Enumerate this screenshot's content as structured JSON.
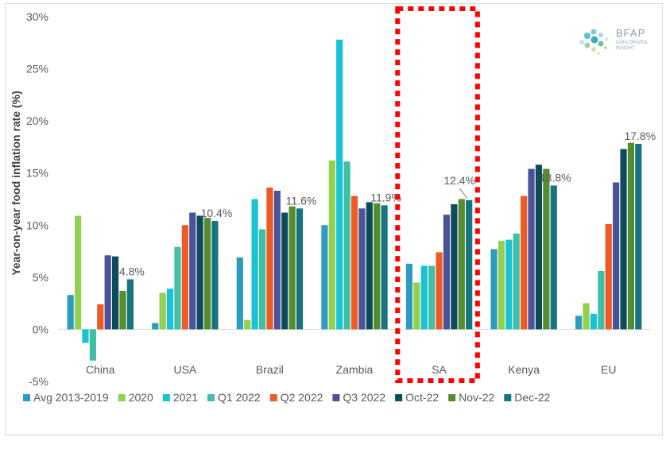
{
  "logo": {
    "brand": "BFAP",
    "tagline": "DATA DRIVEN INSIGHT"
  },
  "chart_data": {
    "type": "bar",
    "ylabel": "Year-on-year food inflation rate (%)",
    "ylim": [
      -5,
      30
    ],
    "yticks": [
      "-5%",
      "0%",
      "5%",
      "10%",
      "15%",
      "20%",
      "25%",
      "30%"
    ],
    "categories": [
      "China",
      "USA",
      "Brazil",
      "Zambia",
      "SA",
      "Kenya",
      "EU"
    ],
    "series": [
      {
        "name": "Avg 2013-2019",
        "color": "#2e9bc0",
        "values": [
          3.3,
          0.6,
          6.9,
          10.0,
          6.3,
          7.7,
          1.3
        ]
      },
      {
        "name": "2020",
        "color": "#92d050",
        "values": [
          10.9,
          3.5,
          0.9,
          16.2,
          4.5,
          8.5,
          2.5
        ]
      },
      {
        "name": "2021",
        "color": "#19c3d3",
        "values": [
          -1.3,
          3.9,
          12.5,
          27.8,
          6.1,
          8.6,
          1.5
        ]
      },
      {
        "name": "Q1 2022",
        "color": "#3fbfa5",
        "values": [
          -3.0,
          7.9,
          9.6,
          16.1,
          6.1,
          9.2,
          5.6
        ]
      },
      {
        "name": "Q2 2022",
        "color": "#ee5a24",
        "values": [
          2.4,
          10.0,
          13.6,
          12.8,
          7.4,
          12.8,
          10.1
        ]
      },
      {
        "name": "Q3 2022",
        "color": "#4a5397",
        "values": [
          7.1,
          11.2,
          13.3,
          11.6,
          11.0,
          15.4,
          14.1
        ]
      },
      {
        "name": "Oct-22",
        "color": "#0e4c5d",
        "values": [
          7.0,
          10.9,
          11.2,
          12.2,
          12.0,
          15.8,
          17.3
        ]
      },
      {
        "name": "Nov-22",
        "color": "#548c2f",
        "values": [
          3.7,
          10.7,
          11.8,
          12.1,
          12.5,
          15.4,
          17.9
        ]
      },
      {
        "name": "Dec-22",
        "color": "#17757f",
        "values": [
          4.8,
          10.4,
          11.6,
          11.9,
          12.4,
          13.8,
          17.8
        ]
      }
    ],
    "data_labels": [
      {
        "category": "China",
        "series": "Dec-22",
        "text": "4.8%"
      },
      {
        "category": "USA",
        "series": "Dec-22",
        "text": "10.4%"
      },
      {
        "category": "Brazil",
        "series": "Dec-22",
        "text": "11.6%"
      },
      {
        "category": "Zambia",
        "series": "Dec-22",
        "text": "11.9%"
      },
      {
        "category": "SA",
        "series": "Dec-22",
        "text": "12.4%"
      },
      {
        "category": "Kenya",
        "series": "Dec-22",
        "text": "13.8%"
      },
      {
        "category": "EU",
        "series": "Dec-22",
        "text": "17.8%"
      }
    ],
    "highlight": {
      "category": "SA",
      "style": "red dotted box",
      "color": "#ff0000"
    },
    "grid": false,
    "legend_position": "bottom"
  }
}
